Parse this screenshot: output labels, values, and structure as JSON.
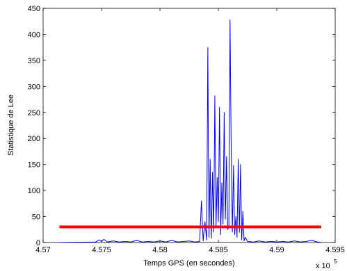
{
  "chart_data": {
    "type": "line",
    "title": "",
    "xlabel": "Temps GPS (en secondes)",
    "ylabel": "Statistique de Lee",
    "x_exponent_label": "x 10",
    "x_exponent_power": "5",
    "xlim": [
      4.57,
      4.595
    ],
    "ylim": [
      0,
      450
    ],
    "x_ticks": [
      4.57,
      4.575,
      4.58,
      4.585,
      4.59,
      4.595
    ],
    "x_tick_labels": [
      "4.57",
      "4.575",
      "4.58",
      "4.585",
      "4.59",
      "4.595"
    ],
    "y_ticks": [
      0,
      50,
      100,
      150,
      200,
      250,
      300,
      350,
      400,
      450
    ],
    "y_tick_labels": [
      "0",
      "50",
      "100",
      "150",
      "200",
      "250",
      "300",
      "350",
      "400",
      "450"
    ],
    "grid": false,
    "series": [
      {
        "color": "#0000ff",
        "x": [
          4.5714,
          4.5745,
          4.5748,
          4.575,
          4.5752,
          4.5755,
          4.576,
          4.5765,
          4.577,
          4.5775,
          4.578,
          4.5785,
          4.579,
          4.5795,
          4.58,
          4.5805,
          4.581,
          4.5815,
          4.582,
          4.5825,
          4.583,
          4.5834,
          4.58355,
          4.5837,
          4.58385,
          4.584,
          4.5841,
          4.58415,
          4.5842,
          4.5843,
          4.58435,
          4.5844,
          4.5845,
          4.5846,
          4.5847,
          4.5848,
          4.5849,
          4.585,
          4.5851,
          4.5852,
          4.5853,
          4.5854,
          4.5855,
          4.5856,
          4.5857,
          4.5858,
          4.5859,
          4.586,
          4.5861,
          4.5862,
          4.5863,
          4.5864,
          4.5865,
          4.5866,
          4.5867,
          4.5868,
          4.5869,
          4.587,
          4.5871,
          4.5872,
          4.5873,
          4.5875,
          4.588,
          4.5885,
          4.589,
          4.5895,
          4.59,
          4.5905,
          4.591,
          4.5915,
          4.592,
          4.5925,
          4.593,
          4.5935,
          4.5938
        ],
        "values": [
          0,
          1,
          5,
          2,
          6,
          1,
          3,
          1,
          2,
          1,
          4,
          1,
          2,
          1,
          3,
          1,
          4,
          1,
          2,
          3,
          1,
          2,
          80,
          3,
          40,
          5,
          375,
          180,
          10,
          160,
          60,
          8,
          135,
          20,
          282,
          30,
          125,
          40,
          260,
          15,
          115,
          35,
          250,
          45,
          165,
          25,
          30,
          428,
          180,
          20,
          148,
          15,
          50,
          10,
          160,
          20,
          150,
          5,
          60,
          3,
          10,
          2,
          1,
          3,
          1,
          2,
          1,
          2,
          1,
          3,
          1,
          2,
          4,
          1,
          0
        ]
      },
      {
        "color": "#ff0000",
        "x": [
          4.5714,
          4.5938
        ],
        "values": [
          30,
          30
        ]
      }
    ]
  }
}
